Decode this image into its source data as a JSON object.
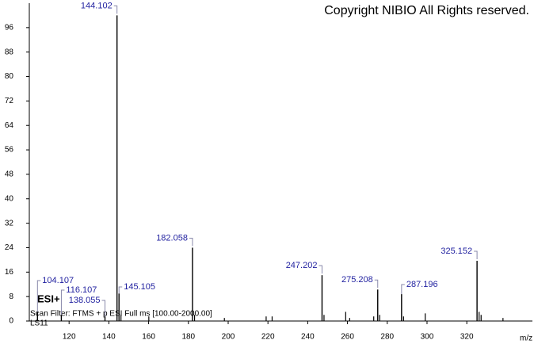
{
  "chart_data": {
    "type": "spectrum",
    "title": "Copyright NIBIO All Rights reserved.",
    "ionization": "ESI+",
    "scan_filter": "Scan Filter: FTMS + p ESI Full ms [100.00-2000.00]",
    "sample": "LS11",
    "x_label": "m/z",
    "color": "#000000",
    "label_color": "#1f1f9f",
    "peaks": {
      "x": [
        104.107,
        116.107,
        138.055,
        144.102,
        145.105,
        182.058,
        247.202,
        275.208,
        287.196,
        325.152
      ],
      "values": [
        3,
        2,
        1.5,
        100,
        9,
        24,
        15,
        10.3,
        8.8,
        19.7
      ]
    },
    "minor_peaks": {
      "x": [
        146.1,
        160.1,
        183.1,
        198.1,
        219.1,
        222.1,
        248.2,
        259.1,
        261.1,
        273.2,
        276.2,
        288.2,
        299.1,
        326.2,
        327.2,
        338.2
      ],
      "values": [
        2,
        1.5,
        2,
        1,
        1.5,
        1.5,
        2,
        3,
        1,
        1.5,
        2,
        1.5,
        2.5,
        3,
        2,
        1
      ]
    },
    "xlim": [
      100,
      353
    ],
    "ylim": [
      0,
      104
    ],
    "xticks": [
      120,
      140,
      160,
      180,
      200,
      220,
      240,
      260,
      280,
      300,
      320
    ],
    "yticks": [
      0,
      8,
      16,
      24,
      32,
      40,
      48,
      56,
      64,
      72,
      80,
      88,
      96
    ]
  }
}
